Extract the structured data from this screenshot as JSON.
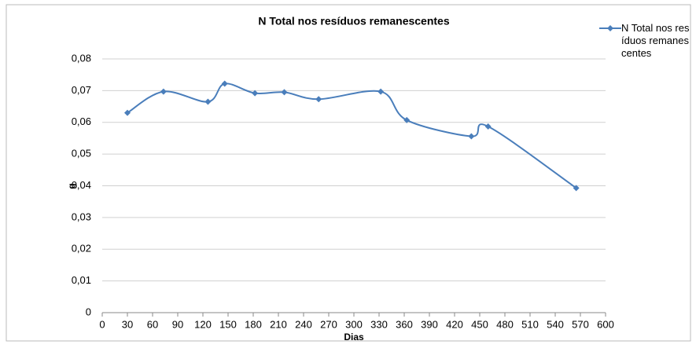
{
  "chart_data": {
    "type": "line",
    "title": "N Total nos resíduos remanescentes",
    "x_label": "Dias",
    "y_label": "g",
    "x": [
      30,
      73,
      126,
      146,
      182,
      217,
      258,
      332,
      363,
      440,
      460,
      565
    ],
    "series": [
      {
        "name": "N Total nos resíduos remanescentes",
        "color": "#4a7ebb",
        "values": [
          0.063,
          0.0697,
          0.0665,
          0.0722,
          0.0692,
          0.0695,
          0.0673,
          0.0697,
          0.0607,
          0.0556,
          0.0587,
          0.0393
        ]
      }
    ],
    "xlim": [
      0,
      600
    ],
    "xticks": [
      0,
      30,
      60,
      90,
      120,
      150,
      180,
      210,
      240,
      270,
      300,
      330,
      360,
      390,
      420,
      450,
      480,
      510,
      540,
      570,
      600
    ],
    "ylim": [
      0,
      0.08
    ],
    "yticks": [
      0,
      {
        "value": 0.01,
        "label": "0,01"
      },
      {
        "value": 0.02,
        "label": "0,02"
      },
      {
        "value": 0.03,
        "label": "0,03"
      },
      {
        "value": 0.04,
        "label": "0,04"
      },
      {
        "value": 0.05,
        "label": "0,05"
      },
      {
        "value": 0.06,
        "label": "0,06"
      },
      {
        "value": 0.07,
        "label": "0,07"
      },
      {
        "value": 0.08,
        "label": "0,08"
      }
    ],
    "grid": true,
    "smooth": true,
    "legend": "right"
  }
}
